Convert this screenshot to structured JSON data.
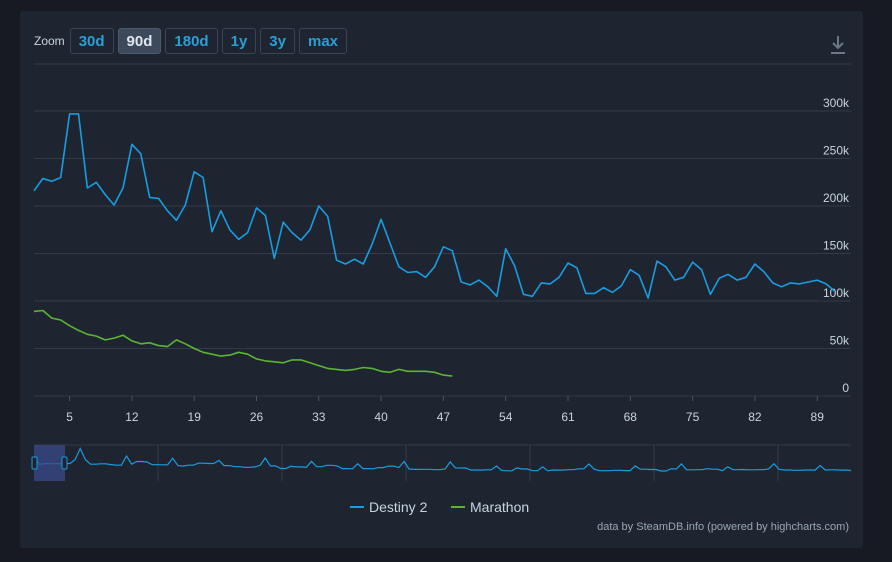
{
  "toolbar": {
    "zoom_label": "Zoom",
    "buttons": [
      "30d",
      "90d",
      "180d",
      "1y",
      "3y",
      "max"
    ],
    "active": "90d"
  },
  "icons": {
    "export": "download-icon"
  },
  "colors": {
    "destiny": "#1a9ce0",
    "marathon": "#5cb531",
    "grid": "#323b48",
    "navigator_mask": "#3a4a8a"
  },
  "credits": "data by SteamDB.info (powered by highcharts.com)",
  "chart_data": {
    "type": "line",
    "title": "",
    "xlabel": "",
    "ylabel": "",
    "x_ticks": [
      "5",
      "12",
      "19",
      "26",
      "33",
      "40",
      "47",
      "54",
      "61",
      "68",
      "75",
      "82",
      "89"
    ],
    "y_ticks": [
      "0",
      "50k",
      "100k",
      "150k",
      "200k",
      "250k",
      "300k"
    ],
    "ylim": [
      0,
      300000
    ],
    "xlim": [
      1,
      91
    ],
    "grid": true,
    "legend": "bottom-center",
    "series": [
      {
        "name": "Destiny 2",
        "x": [
          1,
          2,
          3,
          4,
          5,
          6,
          7,
          8,
          9,
          10,
          11,
          12,
          13,
          14,
          15,
          16,
          17,
          18,
          19,
          20,
          21,
          22,
          23,
          24,
          25,
          26,
          27,
          28,
          29,
          30,
          31,
          32,
          33,
          34,
          35,
          36,
          37,
          38,
          39,
          40,
          41,
          42,
          43,
          44,
          45,
          46,
          47,
          48,
          49,
          50,
          51,
          52,
          53,
          54,
          55,
          56,
          57,
          58,
          59,
          60,
          61,
          62,
          63,
          64,
          65,
          66,
          67,
          68,
          69,
          70,
          71,
          72,
          73,
          74,
          75,
          76,
          77,
          78,
          79,
          80,
          81,
          82,
          83,
          84,
          85,
          86,
          87,
          88,
          89,
          90,
          91
        ],
        "values": [
          216000,
          229000,
          226000,
          230000,
          297000,
          297000,
          219000,
          225000,
          212000,
          201000,
          219000,
          265000,
          255000,
          209000,
          208000,
          195000,
          185000,
          201000,
          236000,
          230000,
          173000,
          195000,
          175000,
          165000,
          172000,
          198000,
          190000,
          145000,
          183000,
          172000,
          164000,
          175000,
          200000,
          189000,
          143000,
          139000,
          144000,
          139000,
          160000,
          186000,
          161000,
          136000,
          130000,
          131000,
          125000,
          136000,
          157000,
          153000,
          120000,
          117000,
          122000,
          115000,
          105000,
          155000,
          137000,
          107000,
          105000,
          119000,
          118000,
          125000,
          140000,
          135000,
          108000,
          108000,
          114000,
          109000,
          116000,
          133000,
          127000,
          103000,
          142000,
          136000,
          122000,
          125000,
          141000,
          133000,
          107000,
          124000,
          128000,
          122000,
          125000,
          139000,
          131000,
          119000,
          115000,
          119000,
          118000,
          120000,
          122000,
          118000,
          110000
        ]
      },
      {
        "name": "Marathon",
        "x": [
          1,
          2,
          3,
          4,
          5,
          6,
          7,
          8,
          9,
          10,
          11,
          12,
          13,
          14,
          15,
          16,
          17,
          18,
          19,
          20,
          21,
          22,
          23,
          24,
          25,
          26,
          27,
          28,
          29,
          30,
          31,
          32,
          33,
          34,
          35,
          36,
          37,
          38,
          39,
          40,
          41,
          42,
          43,
          44,
          45,
          46,
          47,
          48
        ],
        "values": [
          89000,
          90000,
          82000,
          80000,
          74000,
          69000,
          65000,
          63000,
          59000,
          61000,
          64000,
          58000,
          55000,
          56000,
          53000,
          52000,
          59000,
          55000,
          50000,
          46000,
          44000,
          42000,
          43000,
          46000,
          44000,
          39000,
          37000,
          36000,
          35000,
          38000,
          38000,
          35000,
          32000,
          29000,
          28000,
          27000,
          28000,
          30000,
          29000,
          26000,
          25000,
          28000,
          26000,
          26000,
          26000,
          25000,
          22000,
          21000
        ]
      }
    ]
  }
}
